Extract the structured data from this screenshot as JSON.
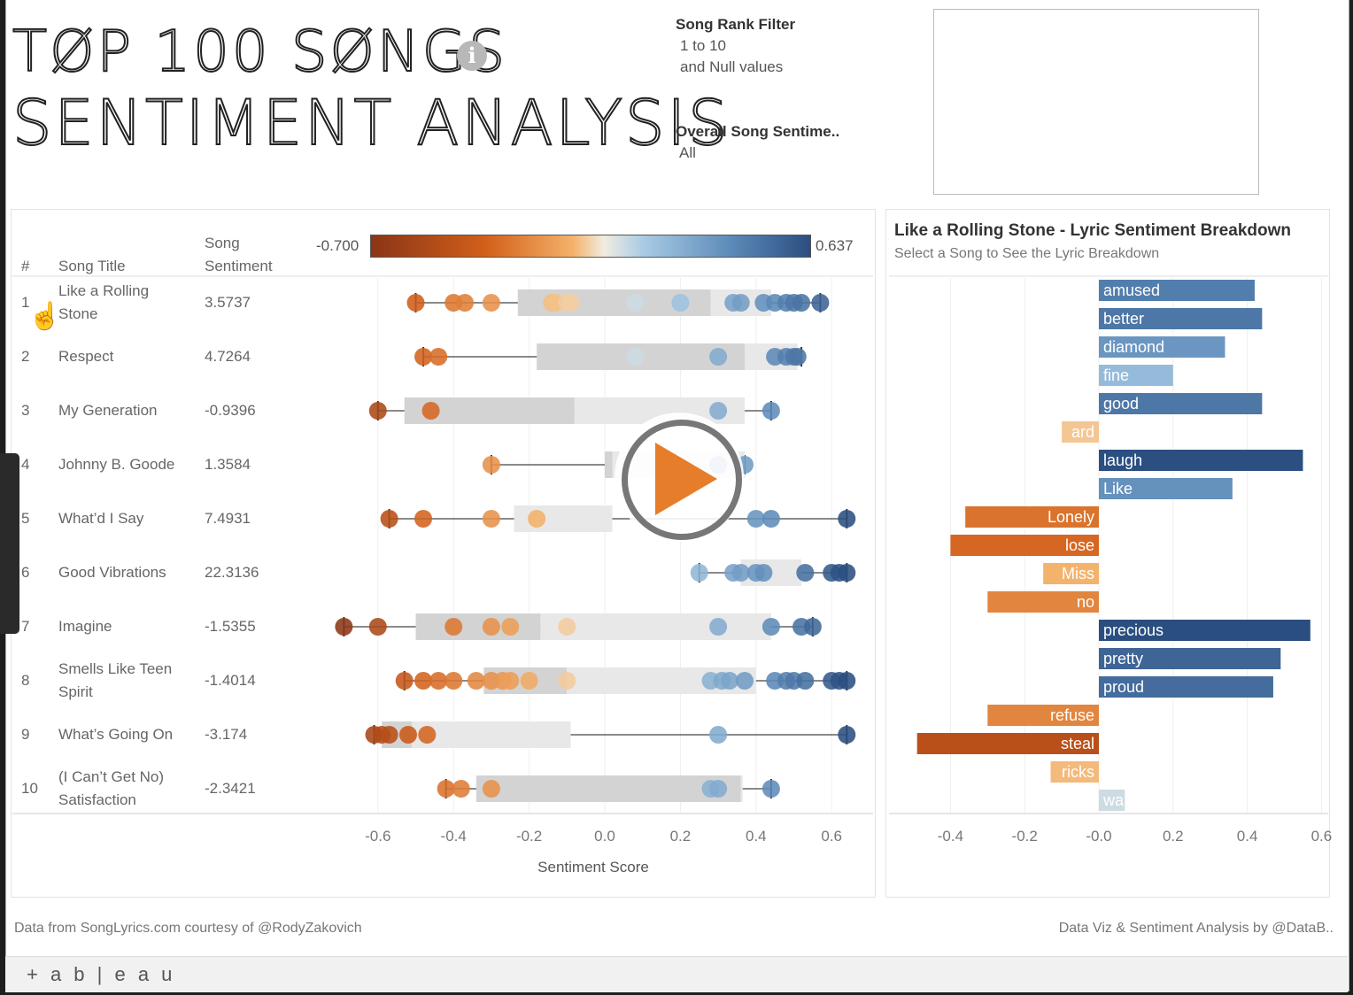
{
  "header": {
    "title_line1": "TØP 100 SØNGS",
    "title_line2": "SENTIMENT ANALYSIS",
    "info_icon": "info-icon",
    "info_glyph": "i"
  },
  "filters": {
    "rank_title": "Song Rank Filter",
    "rank_value1": "1 to 10",
    "rank_value2": "and Null values",
    "sentiment_title": "Overall Song Sentime..",
    "sentiment_value": "All"
  },
  "table": {
    "col_rank": "#",
    "col_title": "Song Title",
    "col_sentiment_1": "Song",
    "col_sentiment_2": "Sentiment",
    "legend_min": "-0.700",
    "legend_max": "0.637",
    "rows": [
      {
        "rank": "1",
        "title": "Like a Rolling",
        "title2": "Stone",
        "sentiment": "3.5737"
      },
      {
        "rank": "2",
        "title": "Respect",
        "title2": "",
        "sentiment": "4.7264"
      },
      {
        "rank": "3",
        "title": "My Generation",
        "title2": "",
        "sentiment": "-0.9396"
      },
      {
        "rank": "4",
        "title": "Johnny B. Goode",
        "title2": "",
        "sentiment": "1.3584"
      },
      {
        "rank": "5",
        "title": "What’d I Say",
        "title2": "",
        "sentiment": "7.4931"
      },
      {
        "rank": "6",
        "title": "Good Vibrations",
        "title2": "",
        "sentiment": "22.3136"
      },
      {
        "rank": "7",
        "title": "Imagine",
        "title2": "",
        "sentiment": "-1.5355"
      },
      {
        "rank": "8",
        "title": "Smells Like Teen",
        "title2": "Spirit",
        "sentiment": "-1.4014"
      },
      {
        "rank": "9",
        "title": "What’s Going On",
        "title2": "",
        "sentiment": "-3.174"
      },
      {
        "rank": "10",
        "title": "(I Can’t Get No)",
        "title2": "Satisfaction",
        "sentiment": "-2.3421"
      }
    ]
  },
  "chart_data": [
    {
      "type": "scatter",
      "subtype": "box-plot-with-points",
      "xlabel": "Sentiment Score",
      "xlim": [
        -0.7,
        0.637
      ],
      "xticks": [
        "-0.6",
        "-0.4",
        "-0.2",
        "0.0",
        "0.2",
        "0.4",
        "0.6"
      ],
      "color_scale": {
        "min": -0.7,
        "max": 0.637,
        "low": "#8a3516",
        "mid": "#f1ece1",
        "high": "#2b4e80"
      },
      "series": [
        {
          "rank": "1",
          "box": {
            "wl": -0.5,
            "q1": -0.23,
            "med": 0.28,
            "q3": 0.44,
            "wh": 0.57
          },
          "points": [
            -0.5,
            -0.4,
            -0.37,
            -0.3,
            -0.14,
            -0.13,
            -0.1,
            -0.09,
            0.08,
            0.2,
            0.34,
            0.36,
            0.42,
            0.45,
            0.48,
            0.5,
            0.52,
            0.57
          ]
        },
        {
          "rank": "2",
          "box": {
            "wl": -0.48,
            "q1": -0.18,
            "med": 0.37,
            "q3": 0.51,
            "wh": 0.52
          },
          "points": [
            -0.48,
            -0.44,
            0.08,
            0.3,
            0.45,
            0.48,
            0.5,
            0.51
          ]
        },
        {
          "rank": "3",
          "box": {
            "wl": -0.6,
            "q1": -0.53,
            "med": -0.08,
            "q3": 0.37,
            "wh": 0.44
          },
          "points": [
            -0.6,
            -0.46,
            0.3,
            0.44
          ]
        },
        {
          "rank": "4",
          "box": {
            "wl": -0.3,
            "q1": 0.0,
            "med": 0.02,
            "q3": 0.37,
            "wh": 0.37
          },
          "points": [
            -0.3,
            0.3,
            0.37
          ]
        },
        {
          "rank": "5",
          "box": {
            "wl": -0.57,
            "q1": -0.24,
            "med": -0.24,
            "q3": 0.02,
            "wh": 0.64
          },
          "points": [
            -0.57,
            -0.48,
            -0.3,
            -0.18,
            0.4,
            0.44,
            0.64
          ]
        },
        {
          "rank": "6",
          "box": {
            "wl": 0.25,
            "q1": 0.36,
            "med": 0.36,
            "q3": 0.52,
            "wh": 0.64
          },
          "points": [
            0.25,
            0.34,
            0.36,
            0.4,
            0.42,
            0.53,
            0.6,
            0.62,
            0.64
          ]
        },
        {
          "rank": "7",
          "box": {
            "wl": -0.69,
            "q1": -0.5,
            "med": -0.17,
            "q3": 0.44,
            "wh": 0.55
          },
          "points": [
            -0.69,
            -0.6,
            -0.4,
            -0.3,
            -0.25,
            -0.1,
            0.3,
            0.44,
            0.52,
            0.55
          ]
        },
        {
          "rank": "8",
          "box": {
            "wl": -0.53,
            "q1": -0.32,
            "med": -0.1,
            "q3": 0.4,
            "wh": 0.64
          },
          "points": [
            -0.53,
            -0.48,
            -0.44,
            -0.4,
            -0.34,
            -0.3,
            -0.27,
            -0.25,
            -0.2,
            -0.1,
            0.28,
            0.31,
            0.33,
            0.37,
            0.45,
            0.48,
            0.5,
            0.53,
            0.6,
            0.62,
            0.64
          ]
        },
        {
          "rank": "9",
          "box": {
            "wl": -0.61,
            "q1": -0.59,
            "med": -0.51,
            "q3": -0.09,
            "wh": 0.64
          },
          "points": [
            -0.61,
            -0.59,
            -0.57,
            -0.52,
            -0.47,
            0.3,
            0.64
          ]
        },
        {
          "rank": "10",
          "box": {
            "wl": -0.42,
            "q1": -0.34,
            "med": 0.36,
            "q3": 0.36,
            "wh": 0.44
          },
          "points": [
            -0.42,
            -0.38,
            -0.3,
            0.28,
            0.3,
            0.44
          ]
        }
      ]
    },
    {
      "type": "bar",
      "orientation": "horizontal",
      "title": "Like a Rolling Stone - Lyric Sentiment Breakdown",
      "subtitle": "Select a Song to See the Lyric Breakdown",
      "xlim": [
        -0.5,
        0.6
      ],
      "xticks": [
        "-0.4",
        "-0.2",
        "-0.0",
        "0.2",
        "0.4",
        "0.6"
      ],
      "categories": [
        "amused",
        "better",
        "diamond",
        "fine",
        "good",
        "ard",
        "laugh",
        "Like",
        "Lonely",
        "lose",
        "Miss",
        "no",
        "precious",
        "pretty",
        "proud",
        "refuse",
        "steal",
        "ricks",
        "wa"
      ],
      "values": [
        0.42,
        0.44,
        0.34,
        0.2,
        0.44,
        -0.1,
        0.55,
        0.36,
        -0.36,
        -0.4,
        -0.15,
        -0.3,
        0.57,
        0.49,
        0.47,
        -0.3,
        -0.49,
        -0.13,
        0.07
      ]
    }
  ],
  "right_panel": {
    "title": "Like a Rolling Stone - Lyric Sentiment Breakdown",
    "subtitle": "Select a Song to See the Lyric Breakdown"
  },
  "footer": {
    "left": "Data from SongLyrics.com courtesy of @RodyZakovich",
    "right": "Data Viz & Sentiment Analysis by @DataB..",
    "brand": "+ a b | e a u",
    "brand_icon": "tableau-logo-icon"
  },
  "overlay": {
    "play_icon": "play-icon",
    "cursor_icon": "hand-cursor-icon"
  }
}
